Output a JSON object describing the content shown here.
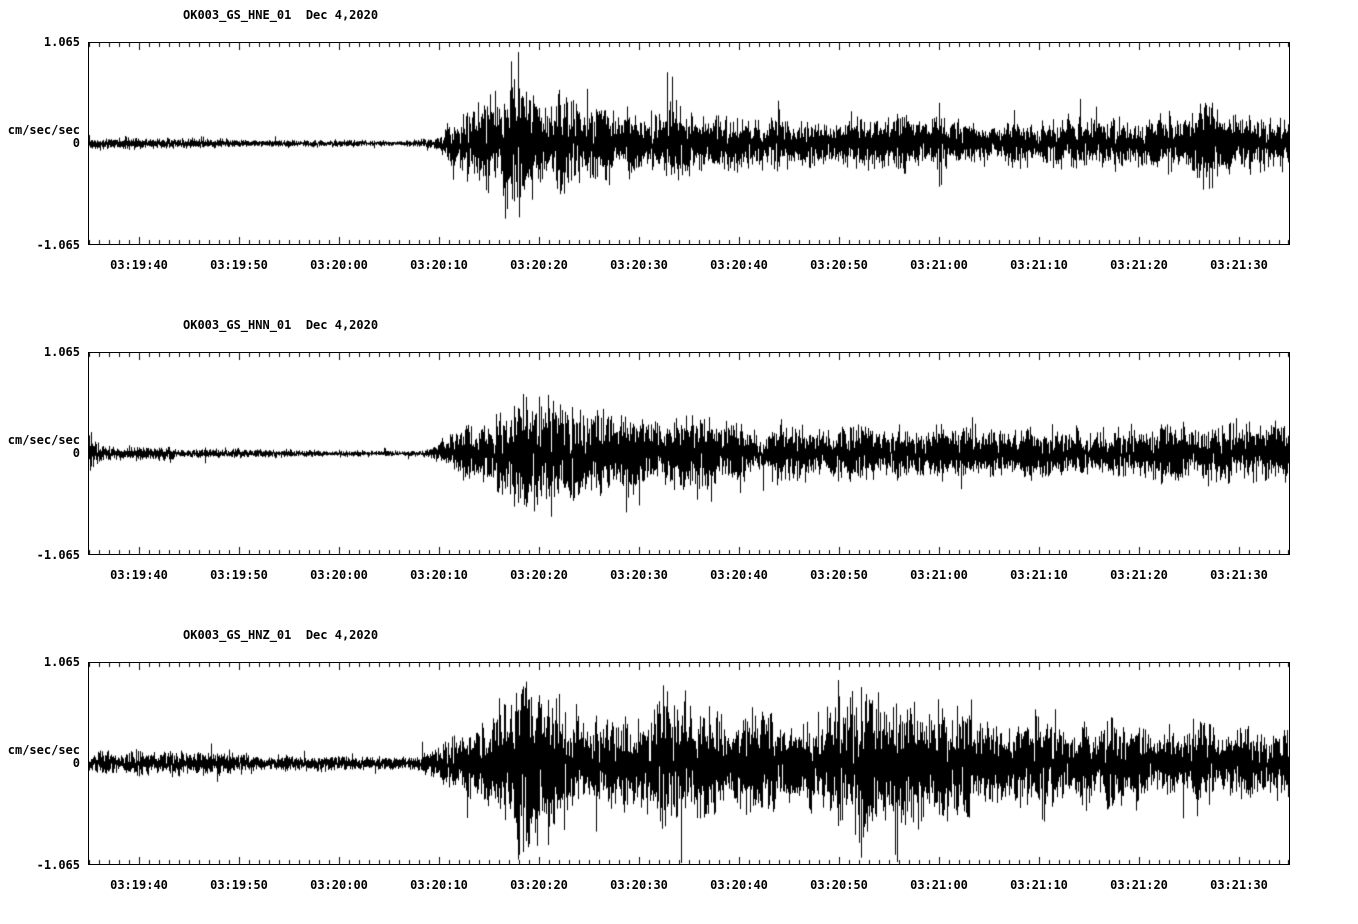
{
  "page": {
    "background": "#ffffff",
    "trace_color": "#000000",
    "frame_color": "#000000"
  },
  "chart_data": [
    {
      "type": "line",
      "title": "OK003_GS_HNE_01  Dec 4,2020",
      "station": "OK003_GS_HNE_01",
      "date": "Dec 4,2020",
      "ylabel": "cm/sec/sec",
      "ylim": [
        -1.065,
        1.065
      ],
      "y_tick_labels": {
        "top": "1.065",
        "mid": "0",
        "bottom": "-1.065"
      },
      "x_start_time": "03:19:35",
      "x_end_time": "03:21:35",
      "x_span_seconds": 120,
      "x_tick_seconds": [
        5,
        15,
        25,
        35,
        45,
        55,
        65,
        75,
        85,
        95,
        105,
        115
      ],
      "x_tick_labels": [
        "03:19:40",
        "03:19:50",
        "03:20:00",
        "03:20:10",
        "03:20:20",
        "03:20:30",
        "03:20:40",
        "03:20:50",
        "03:21:00",
        "03:21:10",
        "03:21:20",
        "03:21:30"
      ],
      "seed": 11,
      "envelope": [
        [
          0,
          0.06
        ],
        [
          7,
          0.065
        ],
        [
          15,
          0.05
        ],
        [
          25,
          0.04
        ],
        [
          33,
          0.035
        ],
        [
          35,
          0.1
        ],
        [
          36,
          0.3
        ],
        [
          38,
          0.4
        ],
        [
          41,
          0.55
        ],
        [
          42,
          0.92
        ],
        [
          44,
          0.65
        ],
        [
          46,
          0.6
        ],
        [
          48,
          0.55
        ],
        [
          50,
          0.45
        ],
        [
          54,
          0.36
        ],
        [
          57,
          0.33
        ],
        [
          59,
          0.45
        ],
        [
          61,
          0.33
        ],
        [
          65,
          0.3
        ],
        [
          70,
          0.28
        ],
        [
          75,
          0.27
        ],
        [
          80,
          0.27
        ],
        [
          84,
          0.3
        ],
        [
          85,
          0.5
        ],
        [
          86,
          0.28
        ],
        [
          90,
          0.26
        ],
        [
          95,
          0.26
        ],
        [
          100,
          0.27
        ],
        [
          105,
          0.28
        ],
        [
          108,
          0.3
        ],
        [
          112,
          0.45
        ],
        [
          114,
          0.3
        ],
        [
          118,
          0.33
        ],
        [
          120,
          0.32
        ]
      ]
    },
    {
      "type": "line",
      "title": "OK003_GS_HNN_01  Dec 4,2020",
      "station": "OK003_GS_HNN_01",
      "date": "Dec 4,2020",
      "ylabel": "cm/sec/sec",
      "ylim": [
        -1.065,
        1.065
      ],
      "y_tick_labels": {
        "top": "1.065",
        "mid": "0",
        "bottom": "-1.065"
      },
      "x_start_time": "03:19:35",
      "x_end_time": "03:21:35",
      "x_span_seconds": 120,
      "x_tick_seconds": [
        5,
        15,
        25,
        35,
        45,
        55,
        65,
        75,
        85,
        95,
        105,
        115
      ],
      "x_tick_labels": [
        "03:19:40",
        "03:19:50",
        "03:20:00",
        "03:20:10",
        "03:20:20",
        "03:20:30",
        "03:20:40",
        "03:20:50",
        "03:21:00",
        "03:21:10",
        "03:21:20",
        "03:21:30"
      ],
      "seed": 22,
      "envelope": [
        [
          0,
          0.25
        ],
        [
          1,
          0.12
        ],
        [
          3,
          0.08
        ],
        [
          8,
          0.07
        ],
        [
          15,
          0.055
        ],
        [
          22,
          0.04
        ],
        [
          30,
          0.035
        ],
        [
          34,
          0.05
        ],
        [
          36,
          0.25
        ],
        [
          38,
          0.35
        ],
        [
          40,
          0.45
        ],
        [
          43,
          0.6
        ],
        [
          45,
          0.78
        ],
        [
          47,
          0.62
        ],
        [
          50,
          0.5
        ],
        [
          53,
          0.42
        ],
        [
          56,
          0.45
        ],
        [
          58,
          0.38
        ],
        [
          61,
          0.45
        ],
        [
          63,
          0.35
        ],
        [
          67,
          0.32
        ],
        [
          70,
          0.33
        ],
        [
          73,
          0.3
        ],
        [
          77,
          0.4
        ],
        [
          79,
          0.3
        ],
        [
          85,
          0.28
        ],
        [
          90,
          0.27
        ],
        [
          95,
          0.28
        ],
        [
          100,
          0.26
        ],
        [
          105,
          0.3
        ],
        [
          110,
          0.32
        ],
        [
          113,
          0.38
        ],
        [
          116,
          0.3
        ],
        [
          120,
          0.31
        ]
      ]
    },
    {
      "type": "line",
      "title": "OK003_GS_HNZ_01  Dec 4,2020",
      "station": "OK003_GS_HNZ_01",
      "date": "Dec 4,2020",
      "ylabel": "cm/sec/sec",
      "ylim": [
        -1.065,
        1.065
      ],
      "y_tick_labels": {
        "top": "1.065",
        "mid": "0",
        "bottom": "-1.065"
      },
      "x_start_time": "03:19:35",
      "x_end_time": "03:21:35",
      "x_span_seconds": 120,
      "x_tick_seconds": [
        5,
        15,
        25,
        35,
        45,
        55,
        65,
        75,
        85,
        95,
        105,
        115
      ],
      "x_tick_labels": [
        "03:19:40",
        "03:19:50",
        "03:20:00",
        "03:20:10",
        "03:20:20",
        "03:20:30",
        "03:20:40",
        "03:20:50",
        "03:21:00",
        "03:21:10",
        "03:21:20",
        "03:21:30"
      ],
      "seed": 33,
      "envelope": [
        [
          0,
          0.12
        ],
        [
          4,
          0.14
        ],
        [
          8,
          0.13
        ],
        [
          12,
          0.14
        ],
        [
          16,
          0.11
        ],
        [
          20,
          0.09
        ],
        [
          25,
          0.08
        ],
        [
          30,
          0.07
        ],
        [
          33,
          0.08
        ],
        [
          35,
          0.2
        ],
        [
          37,
          0.4
        ],
        [
          40,
          0.55
        ],
        [
          43,
          0.95
        ],
        [
          45,
          0.75
        ],
        [
          48,
          0.6
        ],
        [
          50,
          0.55
        ],
        [
          52,
          0.7
        ],
        [
          54,
          0.55
        ],
        [
          58,
          0.68
        ],
        [
          60,
          0.5
        ],
        [
          63,
          0.48
        ],
        [
          66,
          0.52
        ],
        [
          70,
          0.58
        ],
        [
          73,
          0.48
        ],
        [
          77,
          0.85
        ],
        [
          79,
          0.5
        ],
        [
          82,
          0.9
        ],
        [
          84,
          0.55
        ],
        [
          87,
          0.65
        ],
        [
          90,
          0.6
        ],
        [
          93,
          0.48
        ],
        [
          96,
          0.5
        ],
        [
          100,
          0.42
        ],
        [
          103,
          0.45
        ],
        [
          106,
          0.42
        ],
        [
          110,
          0.42
        ],
        [
          113,
          0.45
        ],
        [
          117,
          0.4
        ],
        [
          120,
          0.42
        ]
      ]
    }
  ]
}
